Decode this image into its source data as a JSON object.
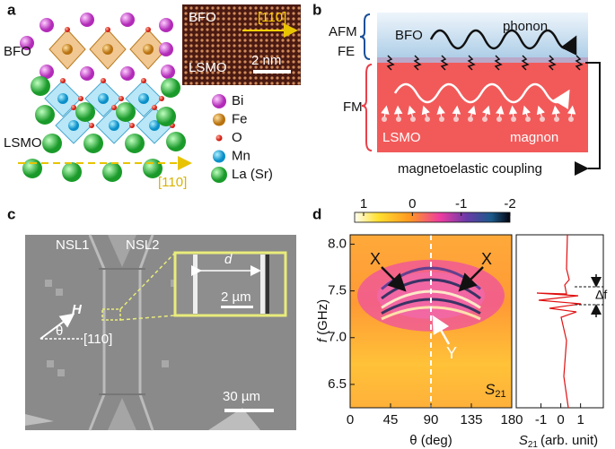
{
  "panel_a": {
    "label": "a",
    "bfo": "BFO",
    "lsmo": "LSMO",
    "direction": "[110]",
    "inset": {
      "top": "BFO",
      "direction": "[110]",
      "bottom": "LSMO",
      "scale": "2 nm"
    },
    "legend": [
      "Bi",
      "Fe",
      "O",
      "Mn",
      "La (Sr)"
    ]
  },
  "panel_b": {
    "label": "b",
    "afm": "AFM",
    "fe": "FE",
    "bfo": "BFO",
    "phonon": "phonon",
    "fm": "FM",
    "lsmo": "LSMO",
    "magnon": "magnon",
    "coupling": "magnetoelastic coupling"
  },
  "panel_c": {
    "label": "c",
    "nsl1": "NSL1",
    "nsl2": "NSL2",
    "d": "d",
    "inset_scale": "2 µm",
    "field": "H",
    "angle": "θ",
    "direction": "[110]",
    "scale": "30 µm"
  },
  "panel_d": {
    "label": "d",
    "colorbar_ticks": [
      1,
      0,
      -1,
      -2
    ],
    "ylabel": {
      "symbol": "f",
      "unit": "(GHz)"
    },
    "xlabel": "θ (deg)",
    "xlim": [
      0,
      180
    ],
    "xticks": [
      0,
      45,
      90,
      135,
      180
    ],
    "ylim": [
      6.25,
      8.1
    ],
    "yticks": [
      6.5,
      {
        "value": 7,
        "label": "7.0"
      },
      7.5,
      {
        "value": 8,
        "label": "8.0"
      }
    ],
    "side_xlim": [
      -2.25,
      2.15
    ],
    "side_xticks": [
      -1,
      0,
      1
    ],
    "side_xlabel": {
      "symbol": "S",
      "subscript": "21",
      "unit": "(arb. unit)"
    },
    "annotations": {
      "x_left": "X",
      "x_right": "X",
      "y": "Y",
      "delta_f": "Δf",
      "s": "S",
      "s_sub": "21"
    }
  }
}
